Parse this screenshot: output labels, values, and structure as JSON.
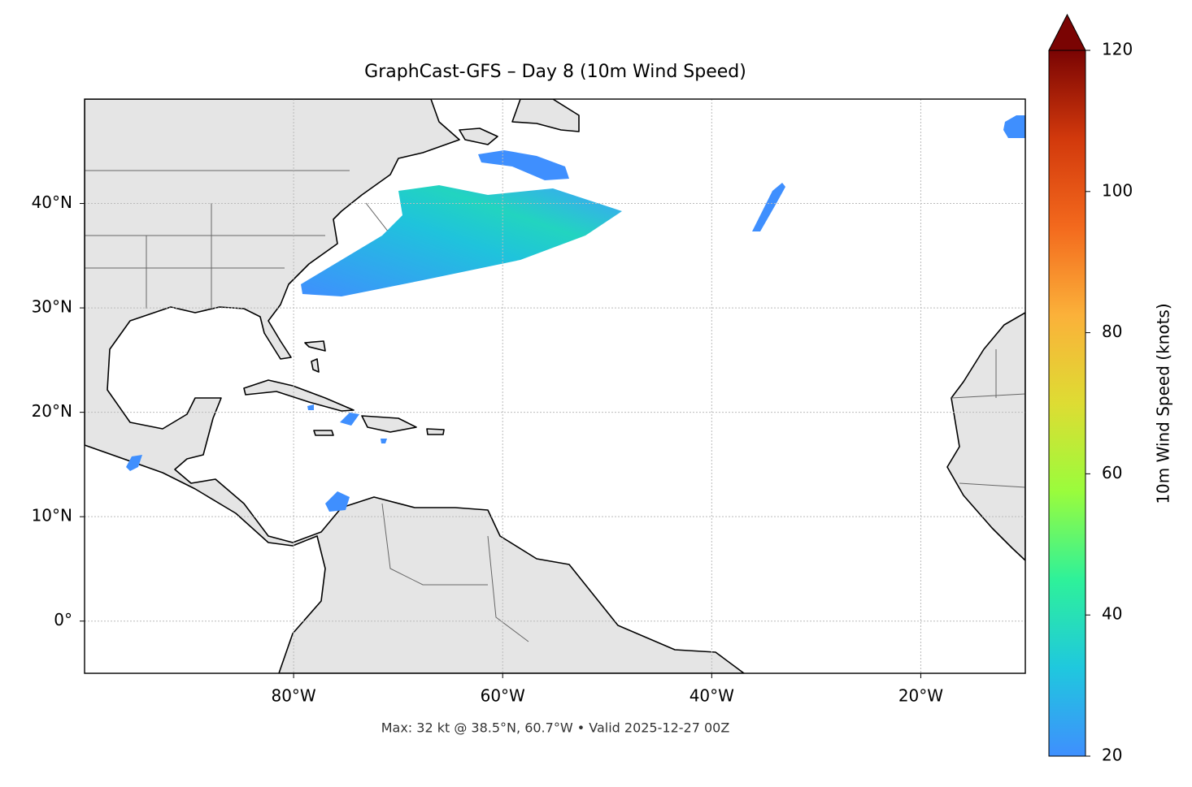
{
  "chart_data": {
    "type": "map",
    "title": "GraphCast-GFS – Day 8 (10m Wind Speed)",
    "caption": "Max: 32 kt @ 38.5°N, 60.7°W • Valid 2025-12-27 00Z",
    "xlim": [
      -100,
      -10
    ],
    "ylim": [
      -5,
      50
    ],
    "xticks": [
      {
        "value": -80,
        "label": "80°W"
      },
      {
        "value": -60,
        "label": "60°W"
      },
      {
        "value": -40,
        "label": "40°W"
      },
      {
        "value": -20,
        "label": "20°W"
      }
    ],
    "yticks": [
      {
        "value": 0,
        "label": "0°"
      },
      {
        "value": 10,
        "label": "10°N"
      },
      {
        "value": 20,
        "label": "20°N"
      },
      {
        "value": 30,
        "label": "30°N"
      },
      {
        "value": 40,
        "label": "40°N"
      }
    ],
    "grid": true,
    "colorbar": {
      "label": "10m Wind Speed (knots)",
      "lim": [
        20,
        120
      ],
      "ticks": [
        20,
        40,
        60,
        80,
        100,
        120
      ],
      "extend": "max",
      "colors": [
        "#3f8ffe",
        "#1fc8de",
        "#2ef19a",
        "#9afc3c",
        "#dedc33",
        "#fbb13a",
        "#f3691d",
        "#d2390c",
        "#7a0403"
      ]
    }
  }
}
